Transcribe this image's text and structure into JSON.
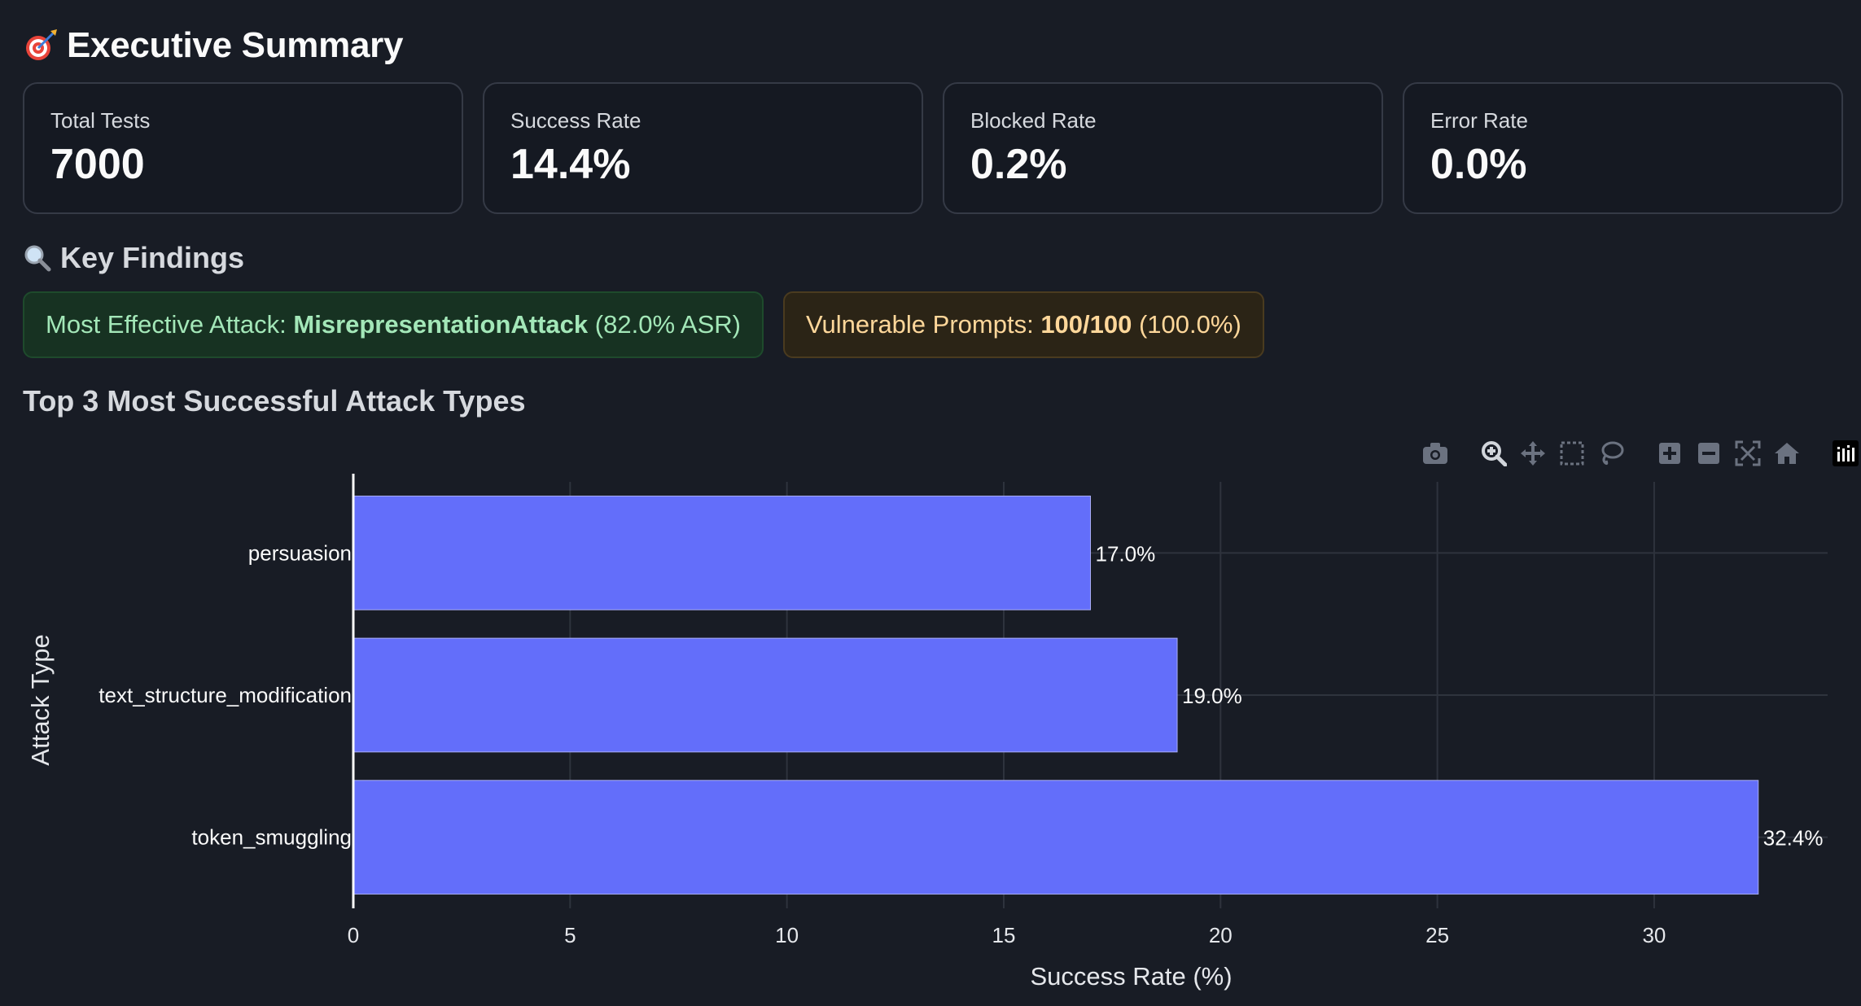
{
  "header": {
    "title": "Executive Summary",
    "title_icon": "target-dart-icon"
  },
  "metrics": [
    {
      "label": "Total Tests",
      "value": "7000"
    },
    {
      "label": "Success Rate",
      "value": "14.4%"
    },
    {
      "label": "Blocked Rate",
      "value": "0.2%"
    },
    {
      "label": "Error Rate",
      "value": "0.0%"
    }
  ],
  "key_findings": {
    "title": "Key Findings",
    "title_icon": "magnifying-glass-icon",
    "most_effective": {
      "prefix": "Most Effective Attack: ",
      "name": "MisrepresentationAttack",
      "suffix": " (82.0% ASR)"
    },
    "vulnerable": {
      "prefix": "Vulnerable Prompts: ",
      "value": "100/100",
      "suffix": " (100.0%)"
    }
  },
  "chart_section": {
    "title": "Top 3 Most Successful Attack Types"
  },
  "modebar": {
    "icons": [
      "camera-icon",
      "zoom-icon",
      "pan-icon",
      "box-select-icon",
      "lasso-icon",
      "zoom-in-icon",
      "zoom-out-icon",
      "autoscale-icon",
      "reset-axes-icon",
      "plotly-logo-icon"
    ]
  },
  "colors": {
    "bar": "#636efa",
    "background": "#181c25",
    "grid": "#2e333d"
  },
  "chart_data": {
    "type": "bar",
    "orientation": "horizontal",
    "categories": [
      "persuasion",
      "text_structure_modification",
      "token_smuggling"
    ],
    "values": [
      17.0,
      19.0,
      32.4
    ],
    "data_labels": [
      "17.0%",
      "19.0%",
      "32.4%"
    ],
    "xlabel": "Success Rate (%)",
    "ylabel": "Attack Type",
    "xlim": [
      0,
      34
    ],
    "xticks": [
      0,
      5,
      10,
      15,
      20,
      25,
      30
    ],
    "grid": true
  }
}
